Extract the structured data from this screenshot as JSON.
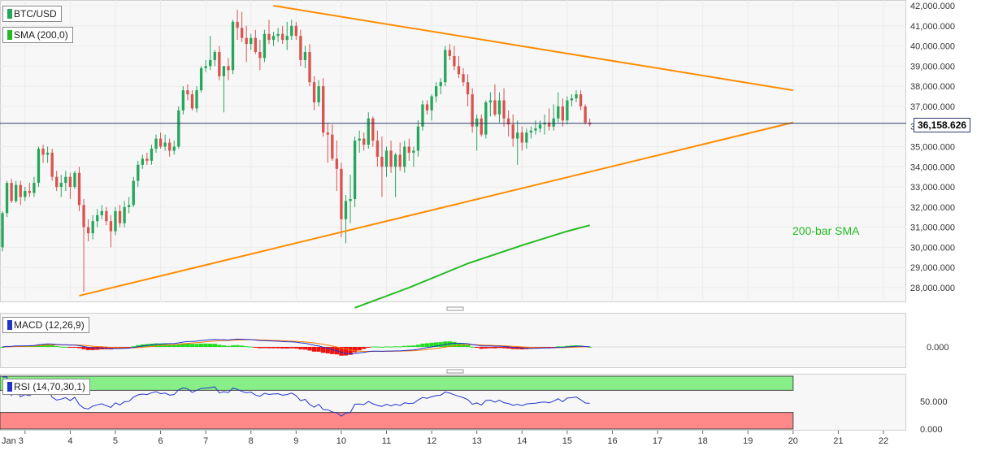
{
  "panels": {
    "price": {
      "title": "BTC/USD",
      "indicator": "SMA (200,0)",
      "sma_label": "200-bar SMA",
      "current_price": "36,158.626",
      "y_ticks": [
        "42,000.000",
        "41,000.000",
        "40,000.000",
        "39,000.000",
        "38,000.000",
        "37,000.000",
        "36,000.000",
        "35,000.000",
        "34,000.000",
        "33,000.000",
        "32,000.000",
        "31,000.000",
        "30,000.000",
        "29,000.000",
        "28,000.000"
      ]
    },
    "macd": {
      "title": "MACD (12,26,9)",
      "y_ticks": [
        "0.000"
      ]
    },
    "rsi": {
      "title": "RSI (14,70,30,1)",
      "y_ticks": [
        "50.000",
        "0.000"
      ]
    }
  },
  "x_ticks": [
    "Jan 3",
    "4",
    "5",
    "6",
    "7",
    "8",
    "9",
    "10",
    "11",
    "12",
    "13",
    "14",
    "15",
    "16",
    "17",
    "18",
    "19",
    "20",
    "21",
    "22"
  ],
  "colors": {
    "bull": "#26a65b",
    "bear": "#d9534f",
    "trend": "#ff8c00",
    "sma": "#22bb22",
    "macd_line": "#2233cc",
    "signal_line": "#ff7a00",
    "hist_pos": "#22dd22",
    "hist_neg": "#ee1111",
    "rsi_line": "#2233cc",
    "rsi_over": "#88ee88",
    "rsi_under": "#ff8888",
    "price_line": "#2a3a6a"
  },
  "chart_data": [
    {
      "type": "candlestick",
      "title": "BTC/USD",
      "x_unit": "day of January (fractional)",
      "ylim": [
        27000,
        42200
      ],
      "candles": [
        {
          "t": 2.5,
          "o": 30000,
          "h": 31800,
          "l": 29800,
          "c": 31700
        },
        {
          "t": 2.6,
          "o": 31700,
          "h": 33300,
          "l": 31500,
          "c": 33200
        },
        {
          "t": 2.7,
          "o": 33200,
          "h": 33400,
          "l": 32200,
          "c": 32300
        },
        {
          "t": 2.8,
          "o": 32300,
          "h": 33300,
          "l": 32200,
          "c": 33100
        },
        {
          "t": 2.9,
          "o": 33100,
          "h": 33300,
          "l": 32100,
          "c": 32500
        },
        {
          "t": 3.0,
          "o": 32500,
          "h": 33000,
          "l": 32300,
          "c": 32800
        },
        {
          "t": 3.1,
          "o": 32800,
          "h": 33200,
          "l": 32500,
          "c": 32700
        },
        {
          "t": 3.2,
          "o": 32700,
          "h": 33500,
          "l": 32500,
          "c": 33200
        },
        {
          "t": 3.3,
          "o": 33200,
          "h": 35000,
          "l": 33000,
          "c": 34900
        },
        {
          "t": 3.4,
          "o": 34900,
          "h": 35100,
          "l": 34200,
          "c": 34600
        },
        {
          "t": 3.5,
          "o": 34600,
          "h": 35000,
          "l": 34200,
          "c": 34700
        },
        {
          "t": 3.6,
          "o": 34700,
          "h": 34900,
          "l": 33300,
          "c": 33500
        },
        {
          "t": 3.7,
          "o": 33500,
          "h": 33800,
          "l": 32800,
          "c": 33000
        },
        {
          "t": 3.8,
          "o": 33000,
          "h": 33600,
          "l": 32500,
          "c": 33200
        },
        {
          "t": 3.9,
          "o": 33200,
          "h": 33800,
          "l": 32800,
          "c": 33500
        },
        {
          "t": 4.0,
          "o": 33500,
          "h": 33700,
          "l": 32400,
          "c": 33000
        },
        {
          "t": 4.1,
          "o": 33000,
          "h": 33800,
          "l": 32900,
          "c": 33700
        },
        {
          "t": 4.2,
          "o": 33700,
          "h": 34000,
          "l": 31800,
          "c": 32100
        },
        {
          "t": 4.3,
          "o": 32100,
          "h": 32400,
          "l": 27800,
          "c": 31000
        },
        {
          "t": 4.4,
          "o": 31000,
          "h": 31400,
          "l": 30300,
          "c": 30700
        },
        {
          "t": 4.5,
          "o": 30700,
          "h": 31600,
          "l": 30400,
          "c": 31300
        },
        {
          "t": 4.6,
          "o": 31300,
          "h": 31900,
          "l": 31000,
          "c": 31600
        },
        {
          "t": 4.7,
          "o": 31600,
          "h": 32100,
          "l": 31400,
          "c": 31800
        },
        {
          "t": 4.8,
          "o": 31800,
          "h": 32000,
          "l": 31100,
          "c": 31300
        },
        {
          "t": 4.9,
          "o": 31300,
          "h": 31600,
          "l": 30000,
          "c": 30800
        },
        {
          "t": 5.0,
          "o": 30800,
          "h": 32000,
          "l": 30600,
          "c": 31800
        },
        {
          "t": 5.1,
          "o": 31800,
          "h": 32100,
          "l": 31000,
          "c": 31200
        },
        {
          "t": 5.2,
          "o": 31200,
          "h": 32300,
          "l": 31000,
          "c": 32000
        },
        {
          "t": 5.3,
          "o": 32000,
          "h": 32500,
          "l": 31700,
          "c": 32100
        },
        {
          "t": 5.4,
          "o": 32100,
          "h": 33500,
          "l": 32000,
          "c": 33300
        },
        {
          "t": 5.5,
          "o": 33300,
          "h": 34300,
          "l": 33000,
          "c": 34100
        },
        {
          "t": 5.6,
          "o": 34100,
          "h": 34600,
          "l": 33900,
          "c": 34400
        },
        {
          "t": 5.7,
          "o": 34400,
          "h": 34700,
          "l": 34100,
          "c": 34300
        },
        {
          "t": 5.8,
          "o": 34300,
          "h": 35100,
          "l": 34100,
          "c": 34900
        },
        {
          "t": 5.9,
          "o": 34900,
          "h": 35600,
          "l": 34700,
          "c": 35400
        },
        {
          "t": 6.0,
          "o": 35400,
          "h": 35700,
          "l": 34900,
          "c": 35000
        },
        {
          "t": 6.1,
          "o": 35000,
          "h": 35600,
          "l": 34800,
          "c": 35200
        },
        {
          "t": 6.2,
          "o": 35200,
          "h": 35400,
          "l": 34500,
          "c": 34800
        },
        {
          "t": 6.3,
          "o": 34800,
          "h": 35300,
          "l": 34600,
          "c": 35000
        },
        {
          "t": 6.4,
          "o": 35000,
          "h": 37000,
          "l": 34900,
          "c": 36800
        },
        {
          "t": 6.5,
          "o": 36800,
          "h": 38000,
          "l": 36600,
          "c": 37800
        },
        {
          "t": 6.6,
          "o": 37800,
          "h": 38100,
          "l": 37300,
          "c": 37600
        },
        {
          "t": 6.7,
          "o": 37600,
          "h": 37800,
          "l": 36800,
          "c": 36900
        },
        {
          "t": 6.8,
          "o": 36900,
          "h": 38000,
          "l": 36700,
          "c": 37800
        },
        {
          "t": 6.9,
          "o": 37800,
          "h": 39000,
          "l": 37700,
          "c": 38900
        },
        {
          "t": 7.0,
          "o": 38900,
          "h": 39300,
          "l": 38700,
          "c": 39000
        },
        {
          "t": 7.1,
          "o": 39000,
          "h": 40500,
          "l": 38800,
          "c": 39300
        },
        {
          "t": 7.2,
          "o": 39300,
          "h": 39800,
          "l": 39000,
          "c": 39700
        },
        {
          "t": 7.3,
          "o": 39700,
          "h": 40000,
          "l": 38300,
          "c": 38500
        },
        {
          "t": 7.4,
          "o": 38500,
          "h": 39000,
          "l": 36700,
          "c": 39000
        },
        {
          "t": 7.5,
          "o": 39000,
          "h": 39400,
          "l": 38300,
          "c": 38800
        },
        {
          "t": 7.6,
          "o": 38800,
          "h": 41300,
          "l": 38600,
          "c": 41200
        },
        {
          "t": 7.7,
          "o": 41200,
          "h": 41800,
          "l": 40300,
          "c": 40900
        },
        {
          "t": 7.8,
          "o": 40900,
          "h": 41700,
          "l": 40200,
          "c": 40400
        },
        {
          "t": 7.9,
          "o": 40400,
          "h": 41000,
          "l": 39200,
          "c": 40100
        },
        {
          "t": 8.0,
          "o": 40100,
          "h": 40600,
          "l": 39800,
          "c": 40400
        },
        {
          "t": 8.1,
          "o": 40400,
          "h": 40800,
          "l": 39600,
          "c": 39700
        },
        {
          "t": 8.2,
          "o": 39700,
          "h": 40300,
          "l": 38800,
          "c": 39400
        },
        {
          "t": 8.3,
          "o": 39400,
          "h": 40800,
          "l": 39200,
          "c": 40600
        },
        {
          "t": 8.4,
          "o": 40600,
          "h": 41300,
          "l": 40100,
          "c": 40300
        },
        {
          "t": 8.5,
          "o": 40300,
          "h": 40700,
          "l": 40000,
          "c": 40500
        },
        {
          "t": 8.6,
          "o": 40500,
          "h": 40900,
          "l": 40200,
          "c": 40600
        },
        {
          "t": 8.7,
          "o": 40600,
          "h": 41000,
          "l": 40100,
          "c": 40300
        },
        {
          "t": 8.8,
          "o": 40300,
          "h": 41200,
          "l": 39800,
          "c": 40500
        },
        {
          "t": 8.9,
          "o": 40500,
          "h": 41300,
          "l": 40300,
          "c": 41000
        },
        {
          "t": 9.0,
          "o": 41000,
          "h": 41200,
          "l": 40300,
          "c": 40500
        },
        {
          "t": 9.1,
          "o": 40500,
          "h": 40800,
          "l": 39000,
          "c": 39300
        },
        {
          "t": 9.2,
          "o": 39300,
          "h": 40000,
          "l": 38900,
          "c": 39700
        },
        {
          "t": 9.3,
          "o": 39700,
          "h": 40100,
          "l": 38000,
          "c": 38200
        },
        {
          "t": 9.4,
          "o": 38200,
          "h": 38500,
          "l": 36800,
          "c": 37200
        },
        {
          "t": 9.5,
          "o": 37200,
          "h": 38300,
          "l": 37000,
          "c": 38000
        },
        {
          "t": 9.6,
          "o": 38000,
          "h": 38400,
          "l": 35500,
          "c": 35700
        },
        {
          "t": 9.7,
          "o": 35700,
          "h": 36200,
          "l": 34200,
          "c": 35600
        },
        {
          "t": 9.8,
          "o": 35600,
          "h": 36100,
          "l": 34300,
          "c": 34400
        },
        {
          "t": 9.9,
          "o": 34400,
          "h": 35300,
          "l": 32800,
          "c": 33900
        },
        {
          "t": 10.0,
          "o": 33900,
          "h": 34200,
          "l": 30500,
          "c": 31400
        },
        {
          "t": 10.1,
          "o": 31400,
          "h": 32600,
          "l": 30200,
          "c": 32300
        },
        {
          "t": 10.2,
          "o": 32300,
          "h": 33600,
          "l": 31200,
          "c": 32400
        },
        {
          "t": 10.3,
          "o": 32400,
          "h": 35500,
          "l": 32000,
          "c": 35300
        },
        {
          "t": 10.4,
          "o": 35300,
          "h": 35800,
          "l": 34700,
          "c": 35400
        },
        {
          "t": 10.5,
          "o": 35400,
          "h": 35700,
          "l": 34800,
          "c": 35100
        },
        {
          "t": 10.6,
          "o": 35100,
          "h": 36700,
          "l": 34900,
          "c": 36400
        },
        {
          "t": 10.7,
          "o": 36400,
          "h": 36500,
          "l": 35000,
          "c": 35300
        },
        {
          "t": 10.8,
          "o": 35300,
          "h": 35800,
          "l": 34000,
          "c": 34500
        },
        {
          "t": 10.9,
          "o": 34500,
          "h": 35500,
          "l": 32500,
          "c": 34000
        },
        {
          "t": 11.0,
          "o": 34000,
          "h": 35000,
          "l": 33500,
          "c": 34800
        },
        {
          "t": 11.1,
          "o": 34800,
          "h": 35300,
          "l": 33700,
          "c": 34000
        },
        {
          "t": 11.2,
          "o": 34000,
          "h": 34700,
          "l": 32500,
          "c": 34600
        },
        {
          "t": 11.3,
          "o": 34600,
          "h": 35200,
          "l": 33800,
          "c": 34000
        },
        {
          "t": 11.4,
          "o": 34000,
          "h": 35300,
          "l": 33700,
          "c": 35000
        },
        {
          "t": 11.5,
          "o": 35000,
          "h": 35400,
          "l": 34300,
          "c": 34700
        },
        {
          "t": 11.6,
          "o": 34700,
          "h": 35000,
          "l": 34000,
          "c": 34800
        },
        {
          "t": 11.7,
          "o": 34800,
          "h": 36300,
          "l": 34500,
          "c": 36000
        },
        {
          "t": 11.8,
          "o": 36000,
          "h": 37300,
          "l": 35800,
          "c": 37100
        },
        {
          "t": 11.9,
          "o": 37100,
          "h": 37300,
          "l": 36600,
          "c": 36800
        },
        {
          "t": 12.0,
          "o": 36800,
          "h": 37600,
          "l": 36300,
          "c": 37500
        },
        {
          "t": 12.1,
          "o": 37500,
          "h": 38200,
          "l": 37200,
          "c": 38000
        },
        {
          "t": 12.2,
          "o": 38000,
          "h": 38400,
          "l": 37600,
          "c": 38200
        },
        {
          "t": 12.3,
          "o": 38200,
          "h": 40000,
          "l": 38000,
          "c": 39800
        },
        {
          "t": 12.4,
          "o": 39800,
          "h": 40100,
          "l": 39300,
          "c": 39500
        },
        {
          "t": 12.5,
          "o": 39500,
          "h": 40000,
          "l": 38800,
          "c": 39000
        },
        {
          "t": 12.6,
          "o": 39000,
          "h": 39500,
          "l": 38400,
          "c": 38600
        },
        {
          "t": 12.7,
          "o": 38600,
          "h": 38900,
          "l": 38000,
          "c": 38200
        },
        {
          "t": 12.8,
          "o": 38200,
          "h": 38600,
          "l": 37000,
          "c": 37600
        },
        {
          "t": 12.9,
          "o": 37600,
          "h": 37900,
          "l": 35700,
          "c": 36000
        },
        {
          "t": 13.0,
          "o": 36000,
          "h": 36600,
          "l": 34800,
          "c": 36400
        },
        {
          "t": 13.1,
          "o": 36400,
          "h": 36600,
          "l": 35500,
          "c": 35600
        },
        {
          "t": 13.2,
          "o": 35600,
          "h": 37300,
          "l": 35400,
          "c": 37200
        },
        {
          "t": 13.3,
          "o": 37200,
          "h": 37700,
          "l": 36500,
          "c": 37300
        },
        {
          "t": 13.4,
          "o": 37300,
          "h": 38100,
          "l": 36500,
          "c": 36600
        },
        {
          "t": 13.5,
          "o": 36600,
          "h": 37700,
          "l": 36200,
          "c": 37300
        },
        {
          "t": 13.6,
          "o": 37300,
          "h": 37900,
          "l": 36000,
          "c": 36400
        },
        {
          "t": 13.7,
          "o": 36400,
          "h": 36800,
          "l": 35500,
          "c": 36100
        },
        {
          "t": 13.8,
          "o": 36100,
          "h": 36600,
          "l": 35000,
          "c": 35400
        },
        {
          "t": 13.9,
          "o": 35400,
          "h": 36300,
          "l": 34100,
          "c": 35700
        },
        {
          "t": 14.0,
          "o": 35700,
          "h": 36000,
          "l": 34800,
          "c": 35200
        },
        {
          "t": 14.1,
          "o": 35200,
          "h": 35900,
          "l": 34900,
          "c": 35700
        },
        {
          "t": 14.2,
          "o": 35700,
          "h": 36000,
          "l": 35400,
          "c": 35800
        },
        {
          "t": 14.3,
          "o": 35800,
          "h": 36300,
          "l": 35600,
          "c": 35900
        },
        {
          "t": 14.4,
          "o": 35900,
          "h": 36300,
          "l": 35700,
          "c": 36100
        },
        {
          "t": 14.5,
          "o": 36100,
          "h": 36600,
          "l": 35600,
          "c": 36200
        },
        {
          "t": 14.6,
          "o": 36200,
          "h": 36900,
          "l": 35800,
          "c": 36000
        },
        {
          "t": 14.7,
          "o": 36000,
          "h": 37100,
          "l": 35800,
          "c": 36400
        },
        {
          "t": 14.8,
          "o": 36400,
          "h": 37700,
          "l": 36200,
          "c": 37000
        },
        {
          "t": 14.9,
          "o": 37000,
          "h": 37400,
          "l": 36000,
          "c": 36300
        },
        {
          "t": 15.0,
          "o": 36300,
          "h": 37500,
          "l": 36100,
          "c": 37300
        },
        {
          "t": 15.1,
          "o": 37300,
          "h": 37600,
          "l": 37000,
          "c": 37400
        },
        {
          "t": 15.2,
          "o": 37400,
          "h": 37800,
          "l": 37200,
          "c": 37600
        },
        {
          "t": 15.3,
          "o": 37600,
          "h": 37800,
          "l": 36800,
          "c": 37000
        },
        {
          "t": 15.4,
          "o": 37000,
          "h": 37100,
          "l": 36100,
          "c": 36200
        },
        {
          "t": 15.5,
          "o": 36200,
          "h": 36400,
          "l": 36000,
          "c": 36100
        }
      ]
    },
    {
      "type": "line",
      "title": "200-bar SMA",
      "x": [
        10.3,
        11.5,
        12.8,
        14.0,
        15.0,
        15.5
      ],
      "y": [
        27000,
        28000,
        29200,
        30100,
        30800,
        31100
      ]
    },
    {
      "type": "line",
      "title": "Triangle trendlines",
      "series": [
        {
          "name": "upper",
          "x": [
            8.5,
            20.0
          ],
          "y": [
            42000,
            37800
          ]
        },
        {
          "name": "lower",
          "x": [
            4.2,
            20.0
          ],
          "y": [
            27600,
            36200
          ]
        }
      ]
    },
    {
      "type": "bar",
      "title": "MACD (12,26,9)",
      "note": "histogram; MACD and signal lines approximate"
    },
    {
      "type": "line",
      "title": "RSI (14,70,30,1)",
      "ylim": [
        0,
        100
      ],
      "levels": [
        70,
        30
      ],
      "approx_last": 48
    }
  ]
}
